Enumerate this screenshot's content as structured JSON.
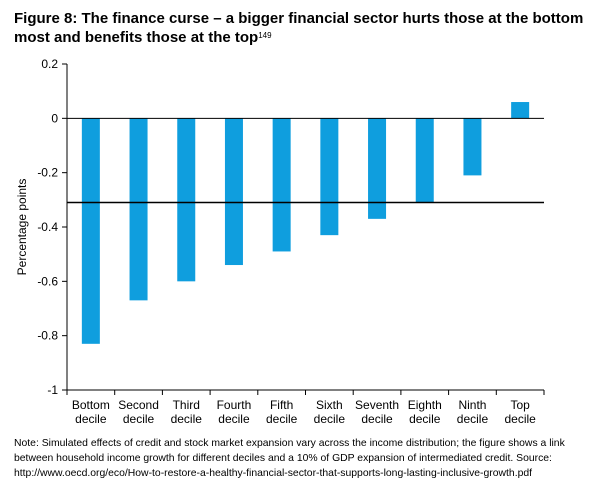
{
  "figure": {
    "title": "Figure 8: The finance curse – a bigger financial sector hurts those at the bottom most and benefits those at the top",
    "footnote_ref": "149",
    "note": "Note: Simulated effects of credit and stock market expansion vary across the income distribution; the figure shows a link between household income growth for different deciles and a 10% of GDP expansion of intermediated credit. Source: http://www.oecd.org/eco/How-to-restore-a-healthy-financial-sector-that-supports-long-lasting-inclusive-growth.pdf"
  },
  "chart_data": {
    "type": "bar",
    "categories": [
      [
        "Bottom",
        "decile"
      ],
      [
        "Second",
        "decile"
      ],
      [
        "Third",
        "decile"
      ],
      [
        "Fourth",
        "decile"
      ],
      [
        "Fifth",
        "decile"
      ],
      [
        "Sixth",
        "decile"
      ],
      [
        "Seventh",
        "decile"
      ],
      [
        "Eighth",
        "decile"
      ],
      [
        "Ninth",
        "decile"
      ],
      [
        "Top",
        "decile"
      ]
    ],
    "values": [
      -0.83,
      -0.67,
      -0.6,
      -0.54,
      -0.49,
      -0.43,
      -0.37,
      -0.31,
      -0.21,
      0.06
    ],
    "ylabel": "Percentage points",
    "ylim": [
      -1,
      0.2
    ],
    "yticks": [
      0.2,
      0,
      -0.2,
      -0.4,
      -0.6,
      -0.8,
      -1
    ],
    "ytick_labels": [
      "0.2",
      "0",
      "-0.2",
      "-0.4",
      "-0.6",
      "-0.8",
      "-1"
    ],
    "reference_line": -0.31,
    "bar_color": "#0f9ede",
    "grid": false
  }
}
